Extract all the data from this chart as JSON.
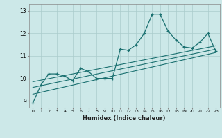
{
  "xlabel": "Humidex (Indice chaleur)",
  "ylabel": "",
  "xlim": [
    -0.5,
    23.5
  ],
  "ylim": [
    8.7,
    13.3
  ],
  "xticks": [
    0,
    1,
    2,
    3,
    4,
    5,
    6,
    7,
    8,
    9,
    10,
    11,
    12,
    13,
    14,
    15,
    16,
    17,
    18,
    19,
    20,
    21,
    22,
    23
  ],
  "yticks": [
    9,
    10,
    11,
    12,
    13
  ],
  "bg_color": "#cce8e8",
  "grid_color": "#aacccc",
  "line_color": "#1a7070",
  "line1_x": [
    0,
    1,
    2,
    3,
    4,
    5,
    6,
    7,
    8,
    9,
    10,
    11,
    12,
    13,
    14,
    15,
    16,
    17,
    18,
    19,
    20,
    21,
    22,
    23
  ],
  "line1_y": [
    8.9,
    9.7,
    10.2,
    10.2,
    10.1,
    9.9,
    10.45,
    10.3,
    10.0,
    10.0,
    10.0,
    11.3,
    11.25,
    11.5,
    12.0,
    12.85,
    12.85,
    12.1,
    11.7,
    11.4,
    11.35,
    11.6,
    12.0,
    11.2
  ],
  "line2_x": [
    0,
    23
  ],
  "line2_y": [
    9.3,
    11.15
  ],
  "line3_x": [
    0,
    23
  ],
  "line3_y": [
    9.6,
    11.3
  ],
  "line4_x": [
    0,
    23
  ],
  "line4_y": [
    9.85,
    11.45
  ]
}
